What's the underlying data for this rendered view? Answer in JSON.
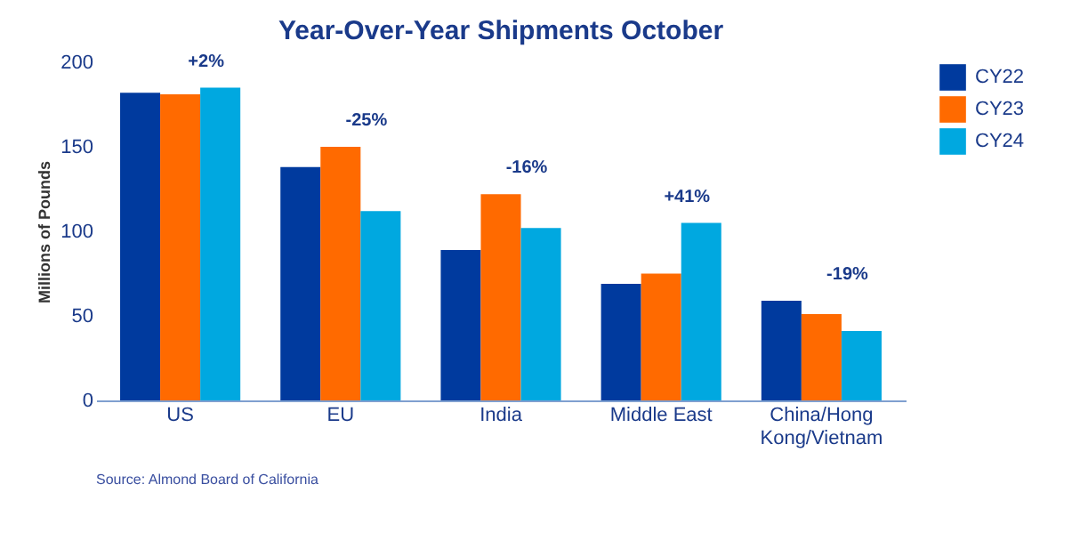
{
  "chart_data": {
    "type": "bar",
    "title": "Year-Over-Year Shipments October",
    "ylabel": "Millions of Pounds",
    "categories": [
      "US",
      "EU",
      "India",
      "Middle East",
      "China/Hong Kong/Vietnam"
    ],
    "series": [
      {
        "name": "CY22",
        "color": "#003a9e",
        "values": [
          182,
          138,
          89,
          69,
          59
        ]
      },
      {
        "name": "CY23",
        "color": "#ff6a00",
        "values": [
          181,
          150,
          122,
          75,
          51
        ]
      },
      {
        "name": "CY24",
        "color": "#00a8e0",
        "values": [
          185,
          112,
          102,
          105,
          41
        ]
      }
    ],
    "ylim": [
      0,
      200
    ],
    "yticks": [
      0,
      50,
      100,
      150,
      200
    ],
    "grid": false,
    "legend": "right",
    "annotations": [
      "+2%",
      "-25%",
      "-16%",
      "+41%",
      "-19%",
      "Source: Almond Board of California"
    ]
  }
}
